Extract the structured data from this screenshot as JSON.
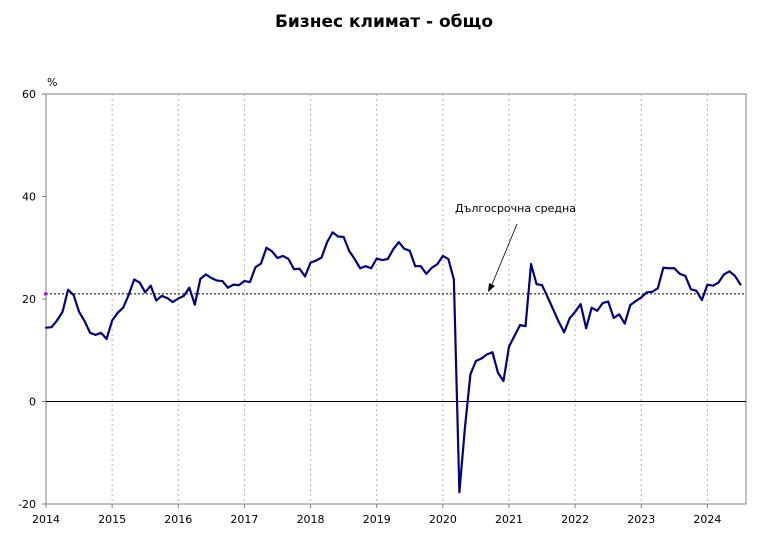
{
  "chart_data": {
    "type": "line",
    "title": "Бизнес климат - общо",
    "ylabel": "%",
    "ylim": [
      -20,
      60
    ],
    "yticks": [
      60,
      40,
      20,
      0,
      -20
    ],
    "x_tick_labels": [
      "2014",
      "2015",
      "2016",
      "2017",
      "2018",
      "2019",
      "2020",
      "2021",
      "2022",
      "2023",
      "2024"
    ],
    "x_range": [
      "2014-01",
      "2024-07"
    ],
    "grid": "vertical dotted at year boundaries",
    "annotation": "Дългосрочна средна",
    "long_term_average": 21,
    "series": [
      {
        "color": "#000080",
        "x": [
          "2014-01",
          "2014-02",
          "2014-03",
          "2014-04",
          "2014-05",
          "2014-06",
          "2014-07",
          "2014-08",
          "2014-09",
          "2014-10",
          "2014-11",
          "2014-12",
          "2015-01",
          "2015-02",
          "2015-03",
          "2015-04",
          "2015-05",
          "2015-06",
          "2015-07",
          "2015-08",
          "2015-09",
          "2015-10",
          "2015-11",
          "2015-12",
          "2016-01",
          "2016-02",
          "2016-03",
          "2016-04",
          "2016-05",
          "2016-06",
          "2016-07",
          "2016-08",
          "2016-09",
          "2016-10",
          "2016-11",
          "2016-12",
          "2017-01",
          "2017-02",
          "2017-03",
          "2017-04",
          "2017-05",
          "2017-06",
          "2017-07",
          "2017-08",
          "2017-09",
          "2017-10",
          "2017-11",
          "2017-12",
          "2018-01",
          "2018-02",
          "2018-03",
          "2018-04",
          "2018-05",
          "2018-06",
          "2018-07",
          "2018-08",
          "2018-09",
          "2018-10",
          "2018-11",
          "2018-12",
          "2019-01",
          "2019-02",
          "2019-03",
          "2019-04",
          "2019-05",
          "2019-06",
          "2019-07",
          "2019-08",
          "2019-09",
          "2019-10",
          "2019-11",
          "2019-12",
          "2020-01",
          "2020-02",
          "2020-03",
          "2020-04",
          "2020-05",
          "2020-06",
          "2020-07",
          "2020-08",
          "2020-09",
          "2020-10",
          "2020-11",
          "2020-12",
          "2021-01",
          "2021-02",
          "2021-03",
          "2021-04",
          "2021-05",
          "2021-06",
          "2021-07",
          "2021-08",
          "2021-09",
          "2021-10",
          "2021-11",
          "2021-12",
          "2022-01",
          "2022-02",
          "2022-03",
          "2022-04",
          "2022-05",
          "2022-06",
          "2022-07",
          "2022-08",
          "2022-09",
          "2022-10",
          "2022-11",
          "2022-12",
          "2023-01",
          "2023-02",
          "2023-03",
          "2023-04",
          "2023-05",
          "2023-06",
          "2023-07",
          "2023-08",
          "2023-09",
          "2023-10",
          "2023-11",
          "2023-12",
          "2024-01",
          "2024-02",
          "2024-03",
          "2024-04",
          "2024-05",
          "2024-06",
          "2024-07"
        ],
        "values": [
          14.4,
          14.5,
          15.8,
          17.5,
          21.8,
          20.8,
          17.5,
          15.7,
          13.4,
          13.0,
          13.4,
          12.2,
          15.8,
          17.3,
          18.3,
          20.8,
          23.8,
          23.2,
          21.3,
          22.6,
          19.7,
          20.6,
          20.2,
          19.4,
          20.1,
          20.6,
          22.2,
          18.9,
          23.9,
          24.8,
          24.1,
          23.6,
          23.5,
          22.2,
          22.8,
          22.7,
          23.5,
          23.3,
          26.2,
          26.9,
          30.0,
          29.3,
          28.0,
          28.4,
          27.8,
          25.8,
          25.9,
          24.4,
          27.1,
          27.5,
          28.1,
          31.1,
          33.0,
          32.2,
          32.1,
          29.4,
          27.8,
          26.0,
          26.4,
          26.0,
          27.9,
          27.6,
          27.8,
          29.7,
          31.1,
          29.8,
          29.4,
          26.4,
          26.4,
          24.9,
          26.1,
          26.8,
          28.4,
          27.8,
          23.8,
          -17.7,
          -5.2,
          5.3,
          7.9,
          8.4,
          9.2,
          9.6,
          5.6,
          4.0,
          10.7,
          12.8,
          14.9,
          14.7,
          26.8,
          22.9,
          22.7,
          20.4,
          18.0,
          15.6,
          13.5,
          16.2,
          17.5,
          19.0,
          14.3,
          18.3,
          17.7,
          19.2,
          19.5,
          16.3,
          17.0,
          15.2,
          18.8,
          19.6,
          20.3,
          21.3,
          21.4,
          22.1,
          26.1,
          26.0,
          26.0,
          24.9,
          24.5,
          21.9,
          21.6,
          19.8,
          22.8,
          22.6,
          23.2,
          24.8,
          25.4,
          24.5,
          22.8
        ]
      }
    ]
  }
}
